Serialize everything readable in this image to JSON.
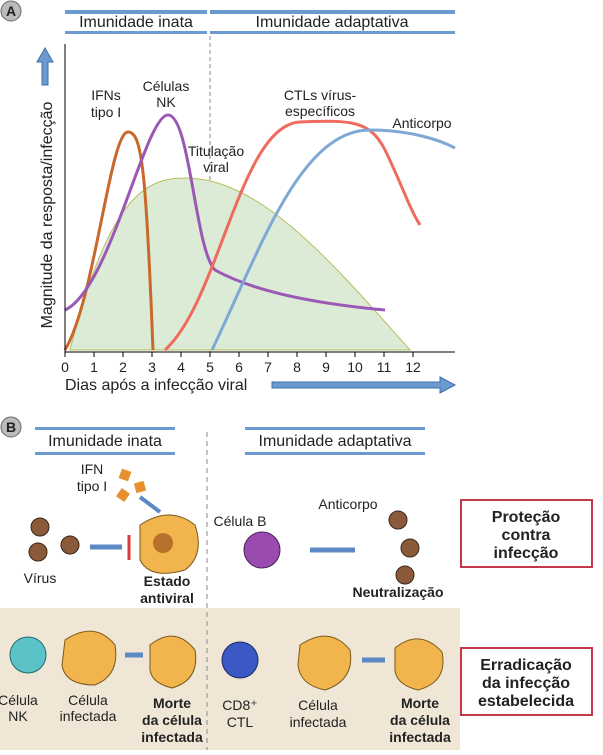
{
  "panel_a": {
    "label": "A",
    "headers": [
      "Imunidade inata",
      "Imunidade adaptativa"
    ],
    "y_axis_title": "Magnitude da resposta/infecção",
    "x_axis_title": "Dias após a infecção viral",
    "x_ticks": [
      0,
      1,
      2,
      3,
      4,
      5,
      6,
      7,
      8,
      9,
      10,
      11,
      12
    ],
    "curve_labels": {
      "ifn": [
        "IFNs",
        "tipo I"
      ],
      "nk": [
        "Células",
        "NK"
      ],
      "viral": [
        "Titulação",
        "viral"
      ],
      "ctl": [
        "CTLs vírus-",
        "específicos"
      ],
      "antibody": [
        "Anticorpo"
      ]
    }
  },
  "panel_b": {
    "label": "B",
    "headers": [
      "Imunidade inata",
      "Imunidade adaptativa"
    ],
    "top": {
      "ifn": [
        "IFN",
        "tipo I"
      ],
      "virus": "Vírus",
      "antiviral": [
        "Estado",
        "antiviral"
      ],
      "b_cell": "Célula B",
      "antibody": "Anticorpo",
      "neutralization": "Neutralização"
    },
    "bottom": {
      "nk_cell": [
        "Célula",
        "NK"
      ],
      "infected_1": [
        "Célula",
        "infectada"
      ],
      "death_1": [
        "Morte",
        "da célula",
        "infectada"
      ],
      "ctl": [
        "CD8⁺",
        "CTL"
      ],
      "infected_2": [
        "Célula",
        "infectada"
      ],
      "death_2": [
        "Morte",
        "da célula",
        "infectada"
      ]
    },
    "boxes": {
      "protection": [
        "Proteção",
        "contra",
        "infecção"
      ],
      "eradication": [
        "Erradicação",
        "da infecção",
        "estabelecida"
      ]
    }
  }
}
